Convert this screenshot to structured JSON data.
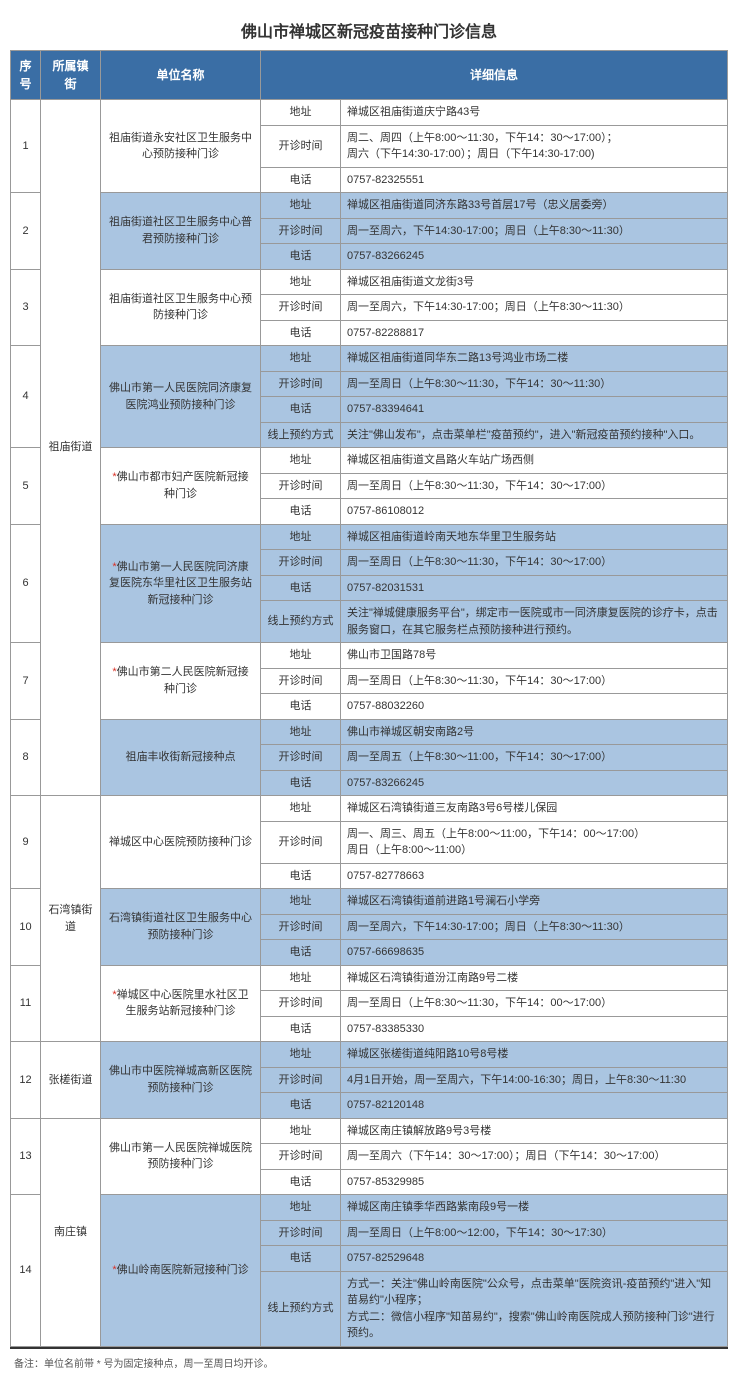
{
  "title": "佛山市禅城区新冠疫苗接种门诊信息",
  "headers": {
    "seq": "序号",
    "town": "所属镇街",
    "unit": "单位名称",
    "detail": "详细信息"
  },
  "labels": {
    "address": "地址",
    "hours": "开诊时间",
    "phone": "电话",
    "online": "线上预约方式"
  },
  "footnote": "备注：单位名前带 * 号为固定接种点，周一至周日均开诊。",
  "colors": {
    "header_bg": "#3a6ea5",
    "header_fg": "#ffffff",
    "alt_bg": "#aac5e1",
    "border": "#999999",
    "star": "#d93025"
  },
  "towns": [
    {
      "name": "祖庙街道",
      "from": 1,
      "to": 8
    },
    {
      "name": "石湾镇街道",
      "from": 9,
      "to": 11
    },
    {
      "name": "张槎街道",
      "from": 12,
      "to": 12
    },
    {
      "name": "南庄镇",
      "from": 13,
      "to": 14
    }
  ],
  "rows": [
    {
      "seq": 1,
      "alt": false,
      "star": false,
      "unit": "祖庙街道永安社区卫生服务中心预防接种门诊",
      "fields": [
        [
          "address",
          "禅城区祖庙街道庆宁路43号"
        ],
        [
          "hours",
          "周二、周四（上午8:00～11:30，下午14：30～17:00）；\n周六（下午14:30-17:00）；周日（下午14:30-17:00)"
        ],
        [
          "phone",
          "0757-82325551"
        ]
      ]
    },
    {
      "seq": 2,
      "alt": true,
      "star": false,
      "unit": "祖庙街道社区卫生服务中心普君预防接种门诊",
      "fields": [
        [
          "address",
          "禅城区祖庙街道同济东路33号首层17号（忠义居委旁）"
        ],
        [
          "hours",
          "周一至周六，下午14:30-17:00；周日（上午8:30～11:30）"
        ],
        [
          "phone",
          "0757-83266245"
        ]
      ]
    },
    {
      "seq": 3,
      "alt": false,
      "star": false,
      "unit": "祖庙街道社区卫生服务中心预防接种门诊",
      "fields": [
        [
          "address",
          "禅城区祖庙街道文龙街3号"
        ],
        [
          "hours",
          "周一至周六，下午14:30-17:00；周日（上午8:30～11:30）"
        ],
        [
          "phone",
          "0757-82288817"
        ]
      ]
    },
    {
      "seq": 4,
      "alt": true,
      "star": false,
      "unit": "佛山市第一人民医院同济康复医院鸿业预防接种门诊",
      "fields": [
        [
          "address",
          "禅城区祖庙街道同华东二路13号鸿业市场二楼"
        ],
        [
          "hours",
          "周一至周日（上午8:30～11:30，下午14：30～11:30）"
        ],
        [
          "phone",
          "0757-83394641"
        ],
        [
          "online",
          "关注\"佛山发布\"，点击菜单栏\"疫苗预约\"，进入\"新冠疫苗预约接种\"入口。"
        ]
      ]
    },
    {
      "seq": 5,
      "alt": false,
      "star": true,
      "unit": "佛山市都市妇产医院新冠接种门诊",
      "fields": [
        [
          "address",
          "禅城区祖庙街道文昌路火车站广场西侧"
        ],
        [
          "hours",
          "周一至周日（上午8:30～11:30，下午14：30～17:00）"
        ],
        [
          "phone",
          "0757-86108012"
        ]
      ]
    },
    {
      "seq": 6,
      "alt": true,
      "star": true,
      "unit": "佛山市第一人民医院同济康复医院东华里社区卫生服务站新冠接种门诊",
      "fields": [
        [
          "address",
          "禅城区祖庙街道岭南天地东华里卫生服务站"
        ],
        [
          "hours",
          "周一至周日（上午8:30～11:30，下午14：30～17:00）"
        ],
        [
          "phone",
          "0757-82031531"
        ],
        [
          "online",
          "关注\"禅城健康服务平台\"，绑定市一医院或市一同济康复医院的诊疗卡，点击服务窗口，在其它服务栏点预防接种进行预约。"
        ]
      ]
    },
    {
      "seq": 7,
      "alt": false,
      "star": true,
      "unit": "佛山市第二人民医院新冠接种门诊",
      "fields": [
        [
          "address",
          "佛山市卫国路78号"
        ],
        [
          "hours",
          "周一至周日（上午8:30～11:30，下午14：30～17:00）"
        ],
        [
          "phone",
          "0757-88032260"
        ]
      ]
    },
    {
      "seq": 8,
      "alt": true,
      "star": false,
      "unit": "祖庙丰收街新冠接种点",
      "fields": [
        [
          "address",
          "佛山市禅城区朝安南路2号"
        ],
        [
          "hours",
          "周一至周五（上午8:30～11:00，下午14：30～17:00）"
        ],
        [
          "phone",
          "0757-83266245"
        ]
      ]
    },
    {
      "seq": 9,
      "alt": false,
      "star": false,
      "unit": "禅城区中心医院预防接种门诊",
      "fields": [
        [
          "address",
          "禅城区石湾镇街道三友南路3号6号楼儿保园"
        ],
        [
          "hours",
          "周一、周三、周五（上午8:00～11:00，下午14：00～17:00）\n周日（上午8:00～11:00）"
        ],
        [
          "phone",
          "0757-82778663"
        ]
      ]
    },
    {
      "seq": 10,
      "alt": true,
      "star": false,
      "unit": "石湾镇街道社区卫生服务中心预防接种门诊",
      "fields": [
        [
          "address",
          "禅城区石湾镇街道前进路1号澜石小学旁"
        ],
        [
          "hours",
          "周一至周六，下午14:30-17:00；周日（上午8:30～11:30）"
        ],
        [
          "phone",
          "0757-66698635"
        ]
      ]
    },
    {
      "seq": 11,
      "alt": false,
      "star": true,
      "unit": "禅城区中心医院里水社区卫生服务站新冠接种门诊",
      "fields": [
        [
          "address",
          "禅城区石湾镇街道汾江南路9号二楼"
        ],
        [
          "hours",
          "周一至周日（上午8:30～11:30，下午14：00～17:00）"
        ],
        [
          "phone",
          "0757-83385330"
        ]
      ]
    },
    {
      "seq": 12,
      "alt": true,
      "star": false,
      "unit": "佛山市中医院禅城高新区医院预防接种门诊",
      "fields": [
        [
          "address",
          "禅城区张槎街道纯阳路10号8号楼"
        ],
        [
          "hours",
          "4月1日开始，周一至周六，下午14:00-16:30；周日，上午8:30～11:30"
        ],
        [
          "phone",
          "0757-82120148"
        ]
      ]
    },
    {
      "seq": 13,
      "alt": false,
      "star": false,
      "unit": "佛山市第一人民医院禅城医院预防接种门诊",
      "fields": [
        [
          "address",
          "禅城区南庄镇解放路9号3号楼"
        ],
        [
          "hours",
          "周一至周六（下午14：30～17:00）；周日（下午14：30～17:00）"
        ],
        [
          "phone",
          "0757-85329985"
        ]
      ]
    },
    {
      "seq": 14,
      "alt": true,
      "star": true,
      "unit": "佛山岭南医院新冠接种门诊",
      "fields": [
        [
          "address",
          "禅城区南庄镇季华西路紫南段9号一楼"
        ],
        [
          "hours",
          "周一至周日（上午8:00～12:00，下午14：30～17:30）"
        ],
        [
          "phone",
          "0757-82529648"
        ],
        [
          "online",
          "方式一：关注\"佛山岭南医院\"公众号，点击菜单\"医院资讯-疫苗预约\"进入\"知苗易约\"小程序；\n方式二：微信小程序\"知苗易约\"，搜索\"佛山岭南医院成人预防接种门诊\"进行预约。"
        ]
      ]
    }
  ]
}
